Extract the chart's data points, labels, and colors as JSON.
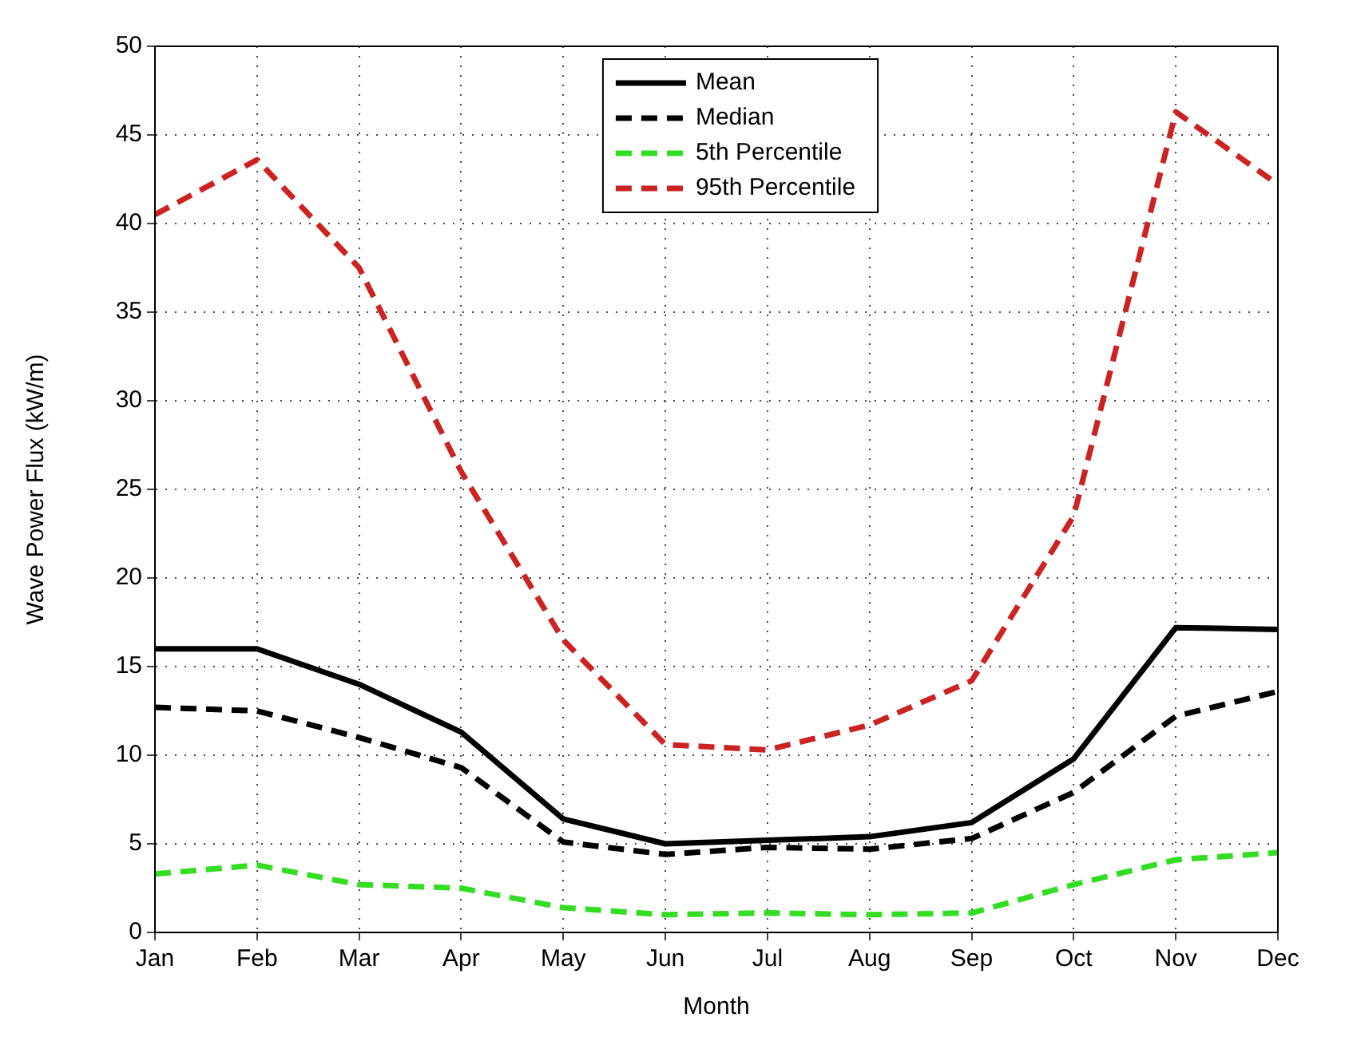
{
  "chart_data": {
    "type": "line",
    "xlabel": "Month",
    "ylabel": "Wave Power Flux (kW/m)",
    "categories": [
      "Jan",
      "Feb",
      "Mar",
      "Apr",
      "May",
      "Jun",
      "Jul",
      "Aug",
      "Sep",
      "Oct",
      "Nov",
      "Dec"
    ],
    "ylim": [
      0,
      50
    ],
    "yticks": [
      0,
      5,
      10,
      15,
      20,
      25,
      30,
      35,
      40,
      45,
      50
    ],
    "grid": true,
    "legend": "top",
    "marker": "none",
    "series": [
      {
        "name": "Mean",
        "color": "#000000",
        "line_style": "solid",
        "values": [
          16,
          16,
          14,
          11.3,
          6.4,
          5.0,
          5.2,
          5.4,
          6.2,
          9.8,
          17.2,
          17.1
        ]
      },
      {
        "name": "Median",
        "color": "#000000",
        "line_style": "dashed",
        "values": [
          12.7,
          12.5,
          11,
          9.3,
          5.1,
          4.4,
          4.8,
          4.7,
          5.3,
          7.9,
          12.2,
          13.6
        ]
      },
      {
        "name": "5th Percentile",
        "color": "#33dd22",
        "line_style": "dashed",
        "values": [
          3.3,
          3.8,
          2.7,
          2.5,
          1.4,
          1.0,
          1.1,
          1.0,
          1.1,
          2.7,
          4.1,
          4.5
        ]
      },
      {
        "name": "95th Percentile",
        "color": "#cc2222",
        "line_style": "dashed",
        "values": [
          40.5,
          43.6,
          37.5,
          26,
          16.5,
          10.6,
          10.3,
          11.7,
          14.2,
          23.5,
          46.3,
          42.2
        ]
      }
    ]
  }
}
